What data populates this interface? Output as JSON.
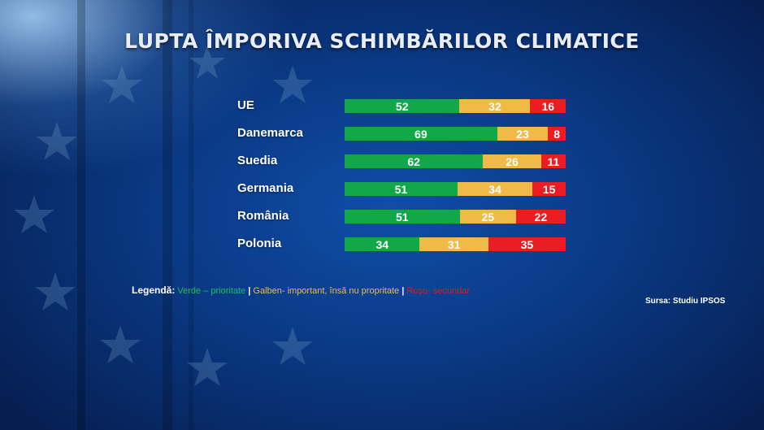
{
  "title": "LUPTA ÎMPORIVA SCHIMBĂRILOR CLIMATICE",
  "chart_data": {
    "type": "bar",
    "orientation": "horizontal",
    "stacked": true,
    "categories": [
      "UE",
      "Danemarca",
      "Suedia",
      "Germania",
      "România",
      "Polonia"
    ],
    "series": [
      {
        "values": [
          52,
          69,
          62,
          51,
          51,
          34
        ],
        "color": "#12a84a"
      },
      {
        "values": [
          32,
          23,
          26,
          34,
          25,
          31
        ],
        "color": "#efba48"
      },
      {
        "values": [
          16,
          8,
          11,
          15,
          22,
          35
        ],
        "color": "#ec1c24"
      }
    ],
    "data_labels": true
  },
  "legend": {
    "title": "Legendă:",
    "separator": "|",
    "items": [
      {
        "text": "Verde – prioritate",
        "color": "#1fbf55"
      },
      {
        "text": "Galben- important, însă nu propritate",
        "color": "#f0bc4a"
      },
      {
        "text": "Roșu- secundar",
        "color": "#e8161f"
      }
    ]
  },
  "source": "Sursa: Studiu IPSOS"
}
